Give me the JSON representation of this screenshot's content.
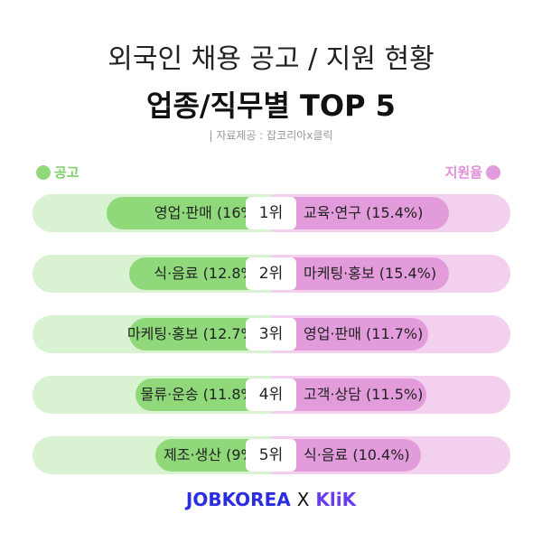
{
  "title": "외국인 채용 공고 / 지원 현황",
  "subtitle": "업종/직무별 TOP 5",
  "source": "| 자료제공 : 잡코리아x클릭",
  "chart_data": {
    "type": "bar",
    "legend": {
      "left": "공고",
      "right": "지원율",
      "left_color": "#8fd97a",
      "right_color": "#e39cdb"
    },
    "rows": [
      {
        "rank": "1위",
        "left_label": "영업·판매 (16%)",
        "left_value": 16,
        "right_label": "교육·연구 (15.4%)",
        "right_value": 15.4
      },
      {
        "rank": "2위",
        "left_label": "식·음료 (12.8%)",
        "left_value": 12.8,
        "right_label": "마케팅·홍보 (15.4%)",
        "right_value": 15.4
      },
      {
        "rank": "3위",
        "left_label": "마케팅·홍보 (12.7%)",
        "left_value": 12.7,
        "right_label": "영업·판매 (11.7%)",
        "right_value": 11.7
      },
      {
        "rank": "4위",
        "left_label": "물류·운송 (11.8%)",
        "left_value": 11.8,
        "right_label": "고객·상담 (11.5%)",
        "right_value": 11.5
      },
      {
        "rank": "5위",
        "left_label": "제조·생산 (9%)",
        "left_value": 9,
        "right_label": "식·음료 (10.4%)",
        "right_value": 10.4
      }
    ]
  },
  "footer": {
    "brand1": "JOBKOREA",
    "sep": "X",
    "brand2": "KliK",
    "brand1_color": "#2a2de0",
    "brand2_color": "#6a3cf0"
  }
}
